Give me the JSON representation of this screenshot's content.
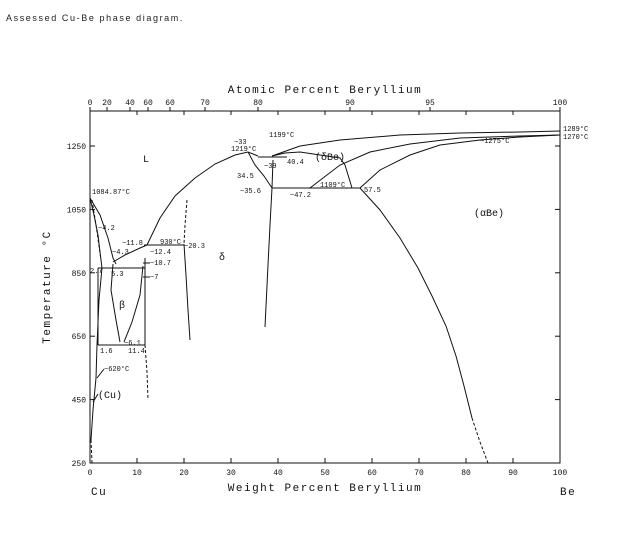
{
  "caption": "Assessed Cu-Be phase diagram.",
  "axes": {
    "top_label": "Atomic Percent Beryllium",
    "bottom_label": "Weight Percent Beryllium",
    "left_label": "Temperature °C",
    "left_element": "Cu",
    "right_element": "Be",
    "bottom_ticks": [
      "0",
      "10",
      "20",
      "30",
      "40",
      "50",
      "60",
      "70",
      "80",
      "90",
      "100"
    ],
    "top_ticks": [
      "0",
      "20",
      "40",
      "60",
      "60",
      "70",
      "80",
      "90",
      "95",
      "100"
    ],
    "left_ticks": [
      "1250",
      "1050",
      "850",
      "650",
      "450",
      "250"
    ]
  },
  "phases": {
    "liquid": "L",
    "delta_be": "(δBe)",
    "alpha_be": "(αBe)",
    "delta": "δ",
    "beta": "β",
    "cu": "(Cu)"
  },
  "annotations": {
    "cu_melt": "1084.87°C",
    "a_4_2": "~4.2",
    "a_11_8": "~11.8",
    "a_4_3": "~4.3",
    "a_930": "930°C",
    "a_20_3": "~20.3",
    "a_12_4": "~12.4",
    "a_10_7": "~10.7",
    "a_2_7": "2.7",
    "a_5_3": "5.3",
    "a_7": "~7",
    "a_6_1": "~6.1",
    "a_1_6": "1.6",
    "a_11_4": "11.4",
    "a_620": "~620°C",
    "a_33": "~33",
    "a_1219": "1219°C",
    "a_1199": "1199°C",
    "a_39": "~39",
    "a_40_4": "40.4",
    "a_34_5": "34.5",
    "a_35_6": "~35.6",
    "a_47_2": "~47.2",
    "a_1109": "1109°C",
    "a_57_5": "57.5",
    "a_1275": "~1275°C",
    "a_1289": "1289°C",
    "a_1270": "1270°C"
  }
}
